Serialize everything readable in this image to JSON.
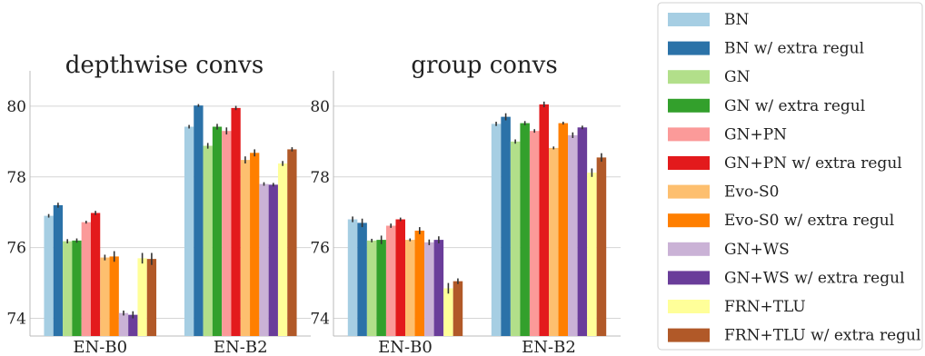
{
  "legend": {
    "position": "right",
    "entries": [
      {
        "name": "BN",
        "color": "#a6cee3"
      },
      {
        "name": "BN w/ extra regul",
        "color": "#2b72a8"
      },
      {
        "name": "GN",
        "color": "#b2df8a"
      },
      {
        "name": "GN w/ extra regul",
        "color": "#33a02c"
      },
      {
        "name": "GN+PN",
        "color": "#fb9a99"
      },
      {
        "name": "GN+PN w/ extra regul",
        "color": "#e31a1c"
      },
      {
        "name": "Evo-S0",
        "color": "#fdbf6f"
      },
      {
        "name": "Evo-S0 w/ extra regul",
        "color": "#ff7f00"
      },
      {
        "name": "GN+WS",
        "color": "#cab2d6"
      },
      {
        "name": "GN+WS w/ extra regul",
        "color": "#6a3d9a"
      },
      {
        "name": "FRN+TLU",
        "color": "#ffff99"
      },
      {
        "name": "FRN+TLU w/ extra regul",
        "color": "#b15928"
      }
    ]
  },
  "chart_data": [
    {
      "type": "bar",
      "title": "depthwise convs",
      "categories": [
        "EN-B0",
        "EN-B2"
      ],
      "ylim": [
        73.5,
        81
      ],
      "yticks": [
        74,
        76,
        78,
        80
      ],
      "grid": true,
      "series": [
        {
          "name": "BN",
          "values": [
            76.9,
            79.42
          ],
          "err": [
            0.05,
            0.05
          ]
        },
        {
          "name": "BN w/ extra regul",
          "values": [
            77.2,
            80.02
          ],
          "err": [
            0.07,
            0.04
          ]
        },
        {
          "name": "GN",
          "values": [
            76.18,
            78.88
          ],
          "err": [
            0.06,
            0.08
          ]
        },
        {
          "name": "GN w/ extra regul",
          "values": [
            76.2,
            79.42
          ],
          "err": [
            0.06,
            0.08
          ]
        },
        {
          "name": "GN+PN",
          "values": [
            76.72,
            79.3
          ],
          "err": [
            0.04,
            0.1
          ]
        },
        {
          "name": "GN+PN w/ extra regul",
          "values": [
            76.98,
            79.95
          ],
          "err": [
            0.06,
            0.06
          ]
        },
        {
          "name": "Evo-S0",
          "values": [
            75.72,
            78.48
          ],
          "err": [
            0.08,
            0.1
          ]
        },
        {
          "name": "Evo-S0 w/ extra regul",
          "values": [
            75.75,
            78.68
          ],
          "err": [
            0.15,
            0.1
          ]
        },
        {
          "name": "GN+WS",
          "values": [
            74.15,
            77.8
          ],
          "err": [
            0.07,
            0.05
          ]
        },
        {
          "name": "GN+WS w/ extra regul",
          "values": [
            74.1,
            77.78
          ],
          "err": [
            0.1,
            0.05
          ]
        },
        {
          "name": "FRN+TLU",
          "values": [
            75.7,
            78.38
          ],
          "err": [
            0.15,
            0.07
          ]
        },
        {
          "name": "FRN+TLU w/ extra regul",
          "values": [
            75.68,
            78.78
          ],
          "err": [
            0.17,
            0.06
          ]
        }
      ]
    },
    {
      "type": "bar",
      "title": "group convs",
      "categories": [
        "EN-B0",
        "EN-B2"
      ],
      "ylim": [
        73.5,
        81
      ],
      "yticks": [
        74,
        76,
        78,
        80
      ],
      "grid": true,
      "series": [
        {
          "name": "BN",
          "values": [
            76.8,
            79.5
          ],
          "err": [
            0.08,
            0.06
          ]
        },
        {
          "name": "BN w/ extra regul",
          "values": [
            76.7,
            79.7
          ],
          "err": [
            0.12,
            0.1
          ]
        },
        {
          "name": "GN",
          "values": [
            76.2,
            79.0
          ],
          "err": [
            0.05,
            0.06
          ]
        },
        {
          "name": "GN w/ extra regul",
          "values": [
            76.22,
            79.52
          ],
          "err": [
            0.12,
            0.06
          ]
        },
        {
          "name": "GN+PN",
          "values": [
            76.62,
            79.3
          ],
          "err": [
            0.06,
            0.05
          ]
        },
        {
          "name": "GN+PN w/ extra regul",
          "values": [
            76.8,
            80.05
          ],
          "err": [
            0.05,
            0.08
          ]
        },
        {
          "name": "Evo-S0",
          "values": [
            76.22,
            78.82
          ],
          "err": [
            0.04,
            0.04
          ]
        },
        {
          "name": "Evo-S0 w/ extra regul",
          "values": [
            76.48,
            79.52
          ],
          "err": [
            0.1,
            0.04
          ]
        },
        {
          "name": "GN+WS",
          "values": [
            76.15,
            79.18
          ],
          "err": [
            0.08,
            0.08
          ]
        },
        {
          "name": "GN+WS w/ extra regul",
          "values": [
            76.22,
            79.4
          ],
          "err": [
            0.1,
            0.05
          ]
        },
        {
          "name": "FRN+TLU",
          "values": [
            74.85,
            78.12
          ],
          "err": [
            0.15,
            0.12
          ]
        },
        {
          "name": "FRN+TLU w/ extra regul",
          "values": [
            75.05,
            78.55
          ],
          "err": [
            0.08,
            0.12
          ]
        }
      ]
    }
  ]
}
